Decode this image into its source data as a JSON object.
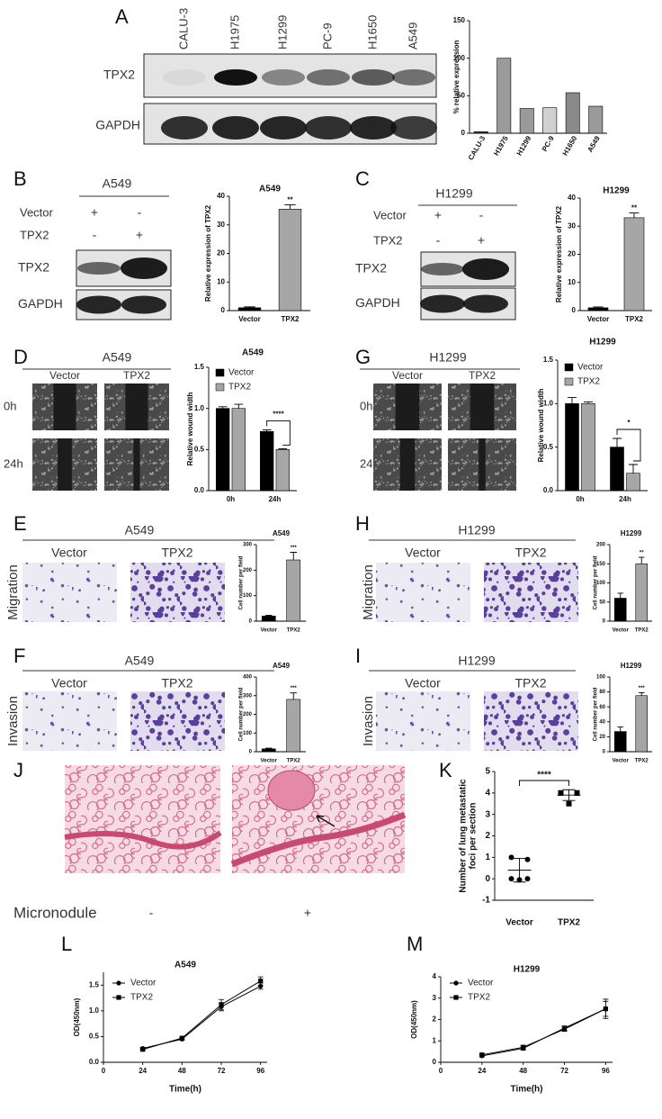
{
  "panel_letters": [
    "A",
    "B",
    "C",
    "D",
    "G",
    "E",
    "H",
    "F",
    "I",
    "J",
    "K",
    "L",
    "M"
  ],
  "blots": [
    {
      "lanes": [
        "CALU-3",
        "H1975",
        "H1299",
        "PC-9",
        "H1650",
        "A549"
      ],
      "rows": [
        "TPX2",
        "GAPDH"
      ]
    },
    {
      "header": "A549",
      "conditions": [
        "Vector",
        "TPX2"
      ],
      "signs": [
        [
          "+",
          "-"
        ],
        [
          "-",
          "+"
        ]
      ],
      "rows": [
        "TPX2",
        "GAPDH"
      ]
    },
    {
      "header": "H1299",
      "conditions": [
        "Vector",
        "TPX2"
      ],
      "signs": [
        [
          "+",
          "-"
        ],
        [
          "-",
          "+"
        ]
      ],
      "rows": [
        "TPX2",
        "GAPDH"
      ]
    }
  ],
  "wound": [
    {
      "header": "A549",
      "columns": [
        "Vector",
        "TPX2"
      ],
      "rows": [
        "0h",
        "24h"
      ]
    },
    {
      "header": "H1299",
      "columns": [
        "Vector",
        "TPX2"
      ],
      "rows": [
        "0h",
        "24h"
      ]
    }
  ],
  "transwell": [
    {
      "header": "A549",
      "columns": [
        "Vector",
        "TPX2"
      ],
      "assay": "Migration"
    },
    {
      "header": "H1299",
      "columns": [
        "Vector",
        "TPX2"
      ],
      "assay": "Migration"
    },
    {
      "header": "A549",
      "columns": [
        "Vector",
        "TPX2"
      ],
      "assay": "Invasion"
    },
    {
      "header": "H1299",
      "columns": [
        "Vector",
        "TPX2"
      ],
      "assay": "Invasion"
    }
  ],
  "tumor": {
    "label": "Micronodule",
    "signs": [
      "-",
      "+"
    ]
  },
  "chart_data": [
    {
      "type": "bar",
      "ylabel": "% relative expression",
      "categories": [
        "CALU-3",
        "H1975",
        "H1299",
        "PC-9",
        "H1650",
        "A549"
      ],
      "values": [
        2,
        100,
        33,
        34,
        54,
        36
      ],
      "colors": [
        "#3a3a3a",
        "#9a9a9a",
        "#9a9a9a",
        "#d0d0d0",
        "#8a8a8a",
        "#9a9a9a"
      ],
      "ylim": [
        0,
        150
      ],
      "yticks": [
        0,
        50,
        100,
        150
      ]
    },
    {
      "type": "bar",
      "title": "A549",
      "ylabel": "Relative expression of TPX2",
      "categories": [
        "Vector",
        "TPX2"
      ],
      "values": [
        1,
        35.5
      ],
      "errors": [
        0.3,
        1.5
      ],
      "colors": [
        "#000000",
        "#a6a6a6"
      ],
      "annotation": "**",
      "ylim": [
        0,
        40
      ],
      "yticks": [
        0,
        10,
        20,
        30,
        40
      ]
    },
    {
      "type": "bar",
      "title": "H1299",
      "ylabel": "Relative expression of TPX2",
      "categories": [
        "Vector",
        "TPX2"
      ],
      "values": [
        1,
        33
      ],
      "errors": [
        0.3,
        1.7
      ],
      "colors": [
        "#000000",
        "#a6a6a6"
      ],
      "annotation": "**",
      "ylim": [
        0,
        40
      ],
      "yticks": [
        0,
        10,
        20,
        30,
        40
      ]
    },
    {
      "type": "bar",
      "title": "A549",
      "ylabel": "Relative wound width",
      "categories": [
        "0h",
        "24h"
      ],
      "series": [
        {
          "name": "Vector",
          "color": "#000000",
          "values": [
            1.0,
            0.72
          ],
          "errors": [
            0.02,
            0.02
          ]
        },
        {
          "name": "TPX2",
          "color": "#a6a6a6",
          "values": [
            1.0,
            0.5
          ],
          "errors": [
            0.05,
            0.01
          ]
        }
      ],
      "annotation": "****",
      "ylim": [
        0,
        1.5
      ],
      "yticks": [
        {
          "value": 0,
          "label": "0.0"
        },
        0.5,
        {
          "value": 1,
          "label": "1.0"
        },
        1.5
      ]
    },
    {
      "type": "bar",
      "title": "H1299",
      "ylabel": "Relative wound width",
      "categories": [
        "0h",
        "24h"
      ],
      "series": [
        {
          "name": "Vector",
          "color": "#000000",
          "values": [
            1.0,
            0.5
          ],
          "errors": [
            0.07,
            0.1
          ]
        },
        {
          "name": "TPX2",
          "color": "#a6a6a6",
          "values": [
            1.0,
            0.2
          ],
          "errors": [
            0.02,
            0.1
          ]
        }
      ],
      "annotation": "*",
      "ylim": [
        0,
        1.5
      ],
      "yticks": [
        {
          "value": 0,
          "label": "0.0"
        },
        0.5,
        {
          "value": 1,
          "label": "1.0"
        },
        1.5
      ]
    },
    {
      "type": "bar",
      "title": "A549",
      "ylabel": "Cell number per field",
      "categories": [
        "Vector",
        "TPX2"
      ],
      "values": [
        20,
        240
      ],
      "errors": [
        3,
        30
      ],
      "colors": [
        "#000000",
        "#a6a6a6"
      ],
      "annotation": "***",
      "ylim": [
        0,
        300
      ],
      "yticks": [
        0,
        100,
        200,
        300
      ]
    },
    {
      "type": "bar",
      "title": "H1299",
      "ylabel": "Cell number per field",
      "categories": [
        "Vector",
        "TPX2"
      ],
      "values": [
        60,
        150
      ],
      "errors": [
        13,
        17
      ],
      "colors": [
        "#000000",
        "#a6a6a6"
      ],
      "annotation": "**",
      "ylim": [
        0,
        200
      ],
      "yticks": [
        0,
        50,
        100,
        150,
        200
      ]
    },
    {
      "type": "bar",
      "title": "A549",
      "ylabel": "Cell number per field",
      "categories": [
        "Vector",
        "TPX2"
      ],
      "values": [
        15,
        280
      ],
      "errors": [
        4,
        35
      ],
      "colors": [
        "#000000",
        "#a6a6a6"
      ],
      "annotation": "***",
      "ylim": [
        0,
        400
      ],
      "yticks": [
        0,
        100,
        200,
        300,
        400
      ]
    },
    {
      "type": "bar",
      "title": "H1299",
      "ylabel": "Cell number per field",
      "categories": [
        "Vector",
        "TPX2"
      ],
      "values": [
        27,
        75
      ],
      "errors": [
        6,
        4
      ],
      "colors": [
        "#000000",
        "#a6a6a6"
      ],
      "annotation": "***",
      "ylim": [
        0,
        100
      ],
      "yticks": [
        0,
        20,
        40,
        60,
        80,
        100
      ]
    },
    {
      "type": "scatter",
      "ylabel": [
        "Number of lung metastatic",
        "foci per section"
      ],
      "categories": [
        "Vector",
        "TPX2"
      ],
      "markers": [
        "circle",
        "square"
      ],
      "points": [
        [
          1,
          0.9,
          0,
          0,
          -0.05
        ],
        [
          4,
          4,
          4,
          4,
          3.5
        ]
      ],
      "means": [
        0.4,
        3.9
      ],
      "errors": [
        0.55,
        0.25
      ],
      "annotation": "****",
      "ylim": [
        -1,
        5
      ],
      "yticks": [
        -1,
        0,
        1,
        2,
        3,
        4,
        5
      ]
    },
    {
      "type": "line",
      "title": "A549",
      "xlabel": "Time(h)",
      "ylabel": "OD(450nm)",
      "x": [
        24,
        48,
        72,
        96
      ],
      "series": [
        {
          "name": "Vector",
          "marker": "circle",
          "color": "#000000",
          "values": [
            0.27,
            0.45,
            1.08,
            1.48
          ],
          "errors": [
            0.02,
            0.02,
            0.08,
            0.06
          ]
        },
        {
          "name": "TPX2",
          "marker": "square",
          "color": "#000000",
          "values": [
            0.25,
            0.47,
            1.12,
            1.58
          ],
          "errors": [
            0.02,
            0.02,
            0.1,
            0.08
          ]
        }
      ],
      "xlim": [
        0,
        100
      ],
      "xticks": [
        0,
        24,
        48,
        72,
        96
      ],
      "ylim": [
        0,
        1.75
      ],
      "yticks": [
        {
          "value": 0,
          "label": "0.0"
        },
        0.5,
        {
          "value": 1,
          "label": "1.0"
        },
        1.5
      ]
    },
    {
      "type": "line",
      "title": "H1299",
      "xlabel": "Time(h)",
      "ylabel": "OD(450nm)",
      "x": [
        24,
        48,
        72,
        96
      ],
      "series": [
        {
          "name": "Vector",
          "marker": "circle",
          "color": "#000000",
          "values": [
            0.3,
            0.65,
            1.6,
            2.5
          ],
          "errors": [
            0.05,
            0.08,
            0.1,
            0.35
          ]
        },
        {
          "name": "TPX2",
          "marker": "square",
          "color": "#000000",
          "values": [
            0.35,
            0.7,
            1.55,
            2.5
          ],
          "errors": [
            0.05,
            0.1,
            0.1,
            0.45
          ]
        }
      ],
      "xlim": [
        0,
        100
      ],
      "xticks": [
        0,
        24,
        48,
        72,
        96
      ],
      "ylim": [
        0,
        4
      ],
      "yticks": [
        0,
        1,
        2,
        3,
        4
      ]
    }
  ]
}
